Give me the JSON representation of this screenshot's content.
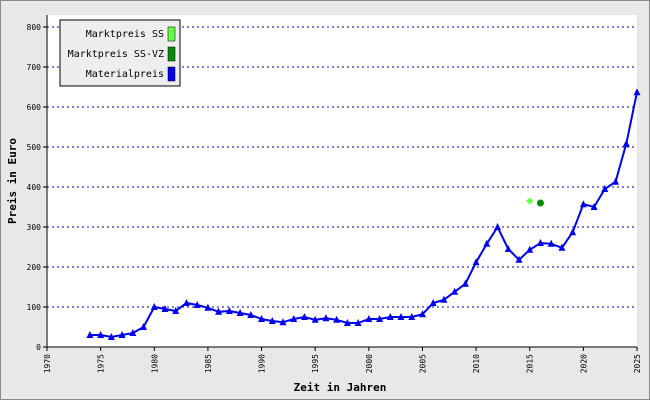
{
  "chart_data": {
    "type": "line",
    "xlabel": "Zeit in Jahren",
    "ylabel": "Preis in Euro",
    "xlim": [
      1970,
      2025
    ],
    "xticks": [
      1970,
      1975,
      1980,
      1985,
      1990,
      1995,
      2000,
      2005,
      2010,
      2015,
      2020,
      2025
    ],
    "ylim": [
      0,
      800
    ],
    "yticks": [
      0,
      100,
      200,
      300,
      400,
      500,
      600,
      700,
      800
    ],
    "grid": true,
    "legend": "upper left",
    "series": [
      {
        "name": "Marktpreis SS",
        "color": "#66ff44",
        "marker": "diamond",
        "x": [
          2015
        ],
        "values": [
          365
        ]
      },
      {
        "name": "Marktpreis SS-VZ",
        "color": "#0a8a0a",
        "marker": "circle",
        "x": [
          2016
        ],
        "values": [
          360
        ]
      },
      {
        "name": "Materialpreis",
        "color": "#0000ee",
        "marker": "triangle",
        "x": [
          1974,
          1975,
          1976,
          1977,
          1978,
          1979,
          1980,
          1981,
          1982,
          1983,
          1984,
          1985,
          1986,
          1987,
          1988,
          1989,
          1990,
          1991,
          1992,
          1993,
          1994,
          1995,
          1996,
          1997,
          1998,
          1999,
          2000,
          2001,
          2002,
          2003,
          2004,
          2005,
          2006,
          2007,
          2008,
          2009,
          2010,
          2011,
          2012,
          2013,
          2014,
          2015,
          2016,
          2017,
          2018,
          2019,
          2020,
          2021,
          2022,
          2023,
          2024,
          2025
        ],
        "values": [
          30,
          30,
          25,
          30,
          35,
          50,
          100,
          95,
          90,
          110,
          105,
          98,
          88,
          90,
          85,
          80,
          70,
          65,
          62,
          70,
          75,
          68,
          72,
          68,
          60,
          60,
          70,
          70,
          75,
          75,
          75,
          82,
          110,
          118,
          138,
          158,
          212,
          258,
          300,
          245,
          218,
          243,
          260,
          258,
          248,
          287,
          357,
          350,
          395,
          413,
          508,
          637
        ]
      }
    ]
  }
}
